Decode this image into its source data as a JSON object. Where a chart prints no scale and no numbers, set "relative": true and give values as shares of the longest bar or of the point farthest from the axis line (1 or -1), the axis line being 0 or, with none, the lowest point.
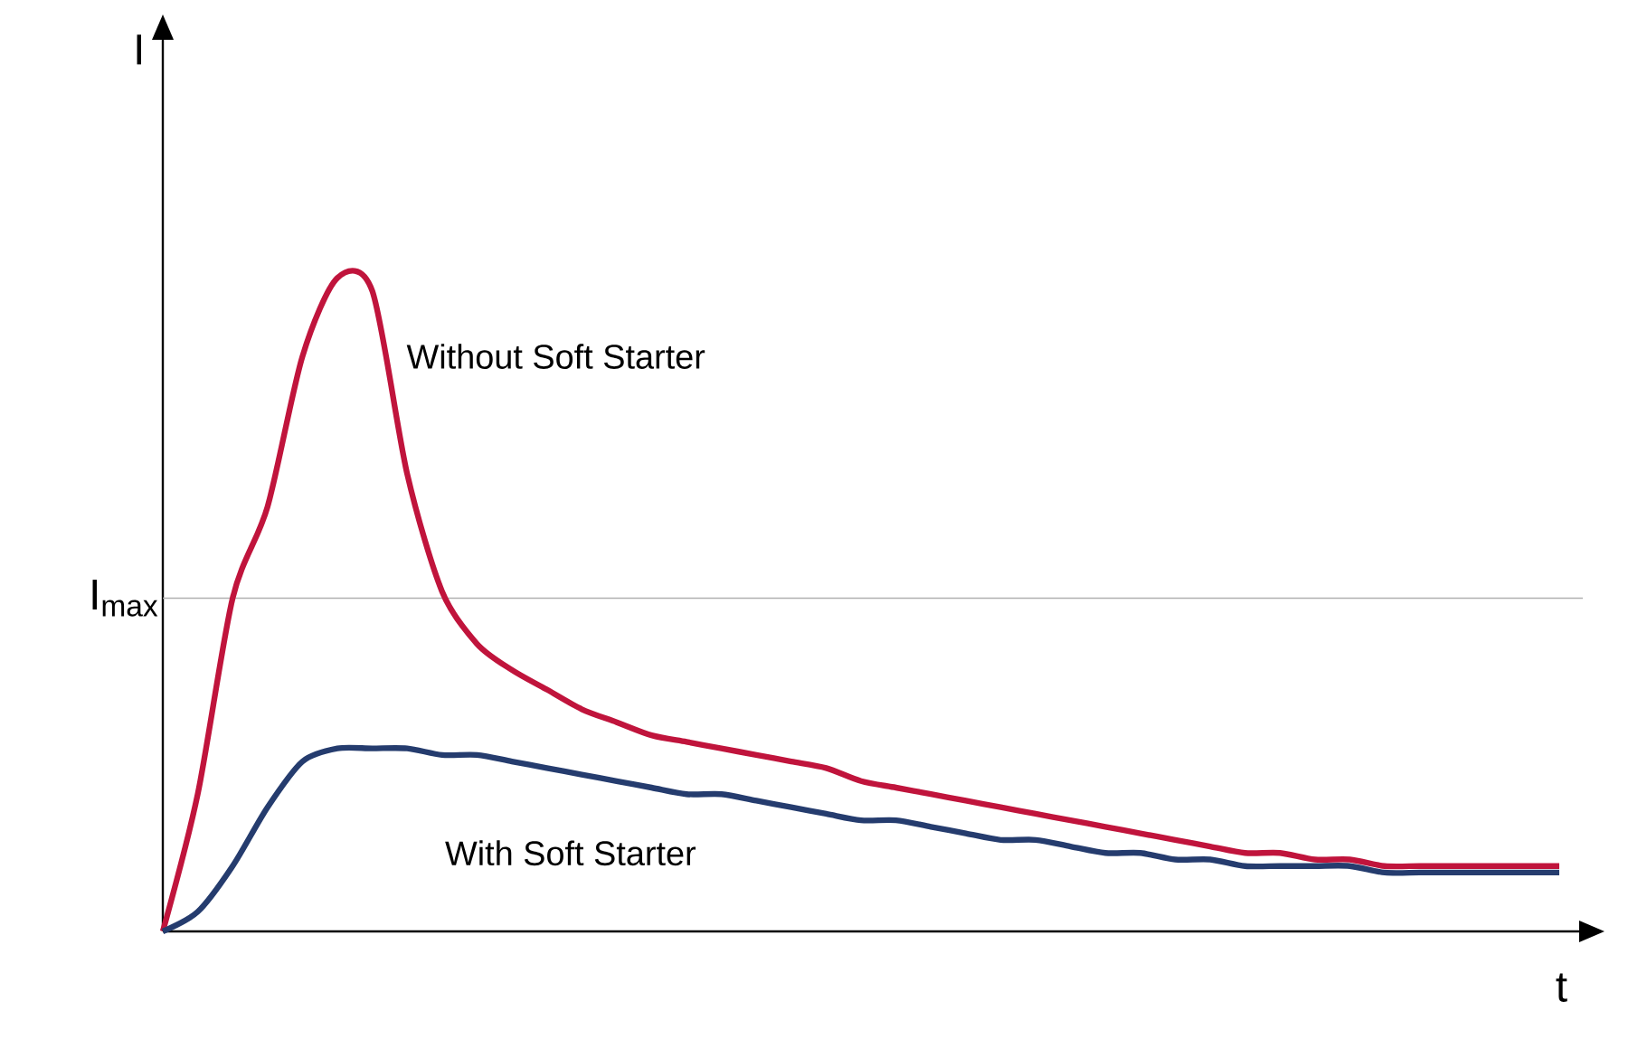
{
  "chart_data": {
    "type": "line",
    "relative": true,
    "xlabel": "t",
    "ylabel": "I",
    "categories": [
      null,
      null,
      null,
      null,
      null,
      null,
      null,
      null,
      null,
      null,
      null,
      null,
      null,
      null,
      null,
      null,
      null,
      null,
      null,
      null,
      null,
      null,
      null,
      null,
      null,
      null,
      null,
      null,
      null,
      null,
      null,
      null,
      null,
      null,
      null,
      null,
      null,
      null,
      null,
      null,
      null
    ],
    "series": [
      {
        "name": "Without Soft Starter",
        "color": "#c0143c",
        "values": [
          0,
          0.21,
          0.51,
          0.65,
          0.88,
          1,
          0.98,
          0.7,
          0.52,
          0.44,
          0.4,
          0.37,
          0.34,
          0.32,
          0.3,
          0.29,
          0.28,
          0.27,
          0.26,
          0.25,
          0.23,
          0.22,
          0.21,
          0.2,
          0.19,
          0.18,
          0.17,
          0.16,
          0.15,
          0.14,
          0.13,
          0.12,
          0.12,
          0.11,
          0.11,
          0.1,
          0.1,
          0.1,
          0.1,
          0.1,
          0.1
        ]
      },
      {
        "name": "With Soft Starter",
        "color": "#253c6e",
        "values": [
          0,
          0.03,
          0.1,
          0.19,
          0.26,
          0.28,
          0.28,
          0.28,
          0.27,
          0.27,
          0.26,
          0.25,
          0.24,
          0.23,
          0.22,
          0.21,
          0.21,
          0.2,
          0.19,
          0.18,
          0.17,
          0.17,
          0.16,
          0.15,
          0.14,
          0.14,
          0.13,
          0.12,
          0.12,
          0.11,
          0.11,
          0.1,
          0.1,
          0.1,
          0.1,
          0.09,
          0.09,
          0.09,
          0.09,
          0.09,
          0.09
        ]
      }
    ],
    "ref_lines": [
      {
        "axis": "y",
        "value": 0.51,
        "label": "I$_{max}$",
        "color": "#b0b0b0"
      }
    ],
    "marker": "none"
  }
}
